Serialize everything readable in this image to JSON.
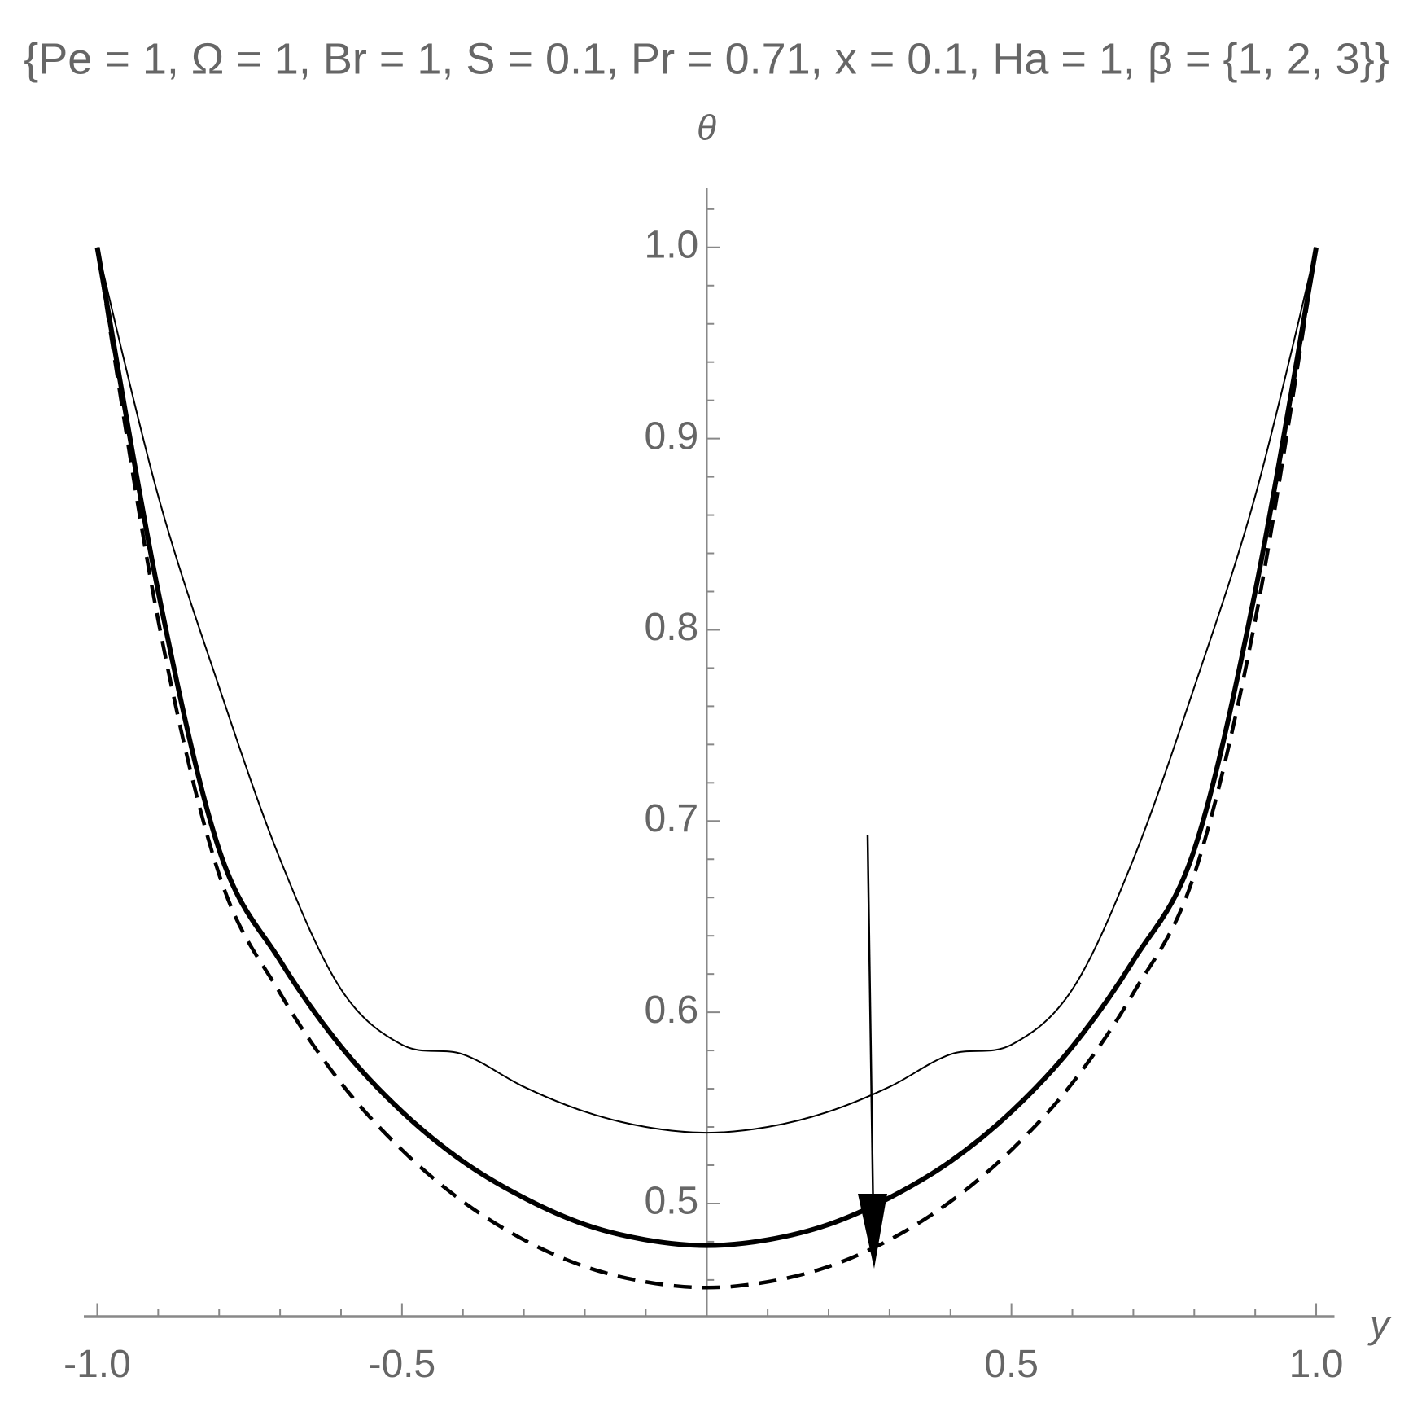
{
  "chart_data": {
    "type": "line",
    "title": "{Pe = 1, Ω = 1, Br = 1, S = 0.1, Pr = 0.71, x = 0.1, Ha = 1, β = {1, 2, 3}}",
    "x_label": "y",
    "y_label": "θ",
    "x": [
      -1,
      -0.9,
      -0.8,
      -0.7,
      -0.6,
      -0.5,
      -0.4,
      -0.3,
      -0.2,
      -0.1,
      0,
      0.1,
      0.2,
      0.3,
      0.4,
      0.5,
      0.6,
      0.7,
      0.8,
      0.9,
      1
    ],
    "series": [
      {
        "color": "#000000",
        "line_style": "thin",
        "values": [
          1.0,
          0.87,
          0.77,
          0.68,
          0.612,
          0.583,
          0.578,
          0.561,
          0.548,
          0.54,
          0.537,
          0.54,
          0.548,
          0.561,
          0.578,
          0.583,
          0.612,
          0.68,
          0.77,
          0.87,
          1.0
        ]
      },
      {
        "color": "#000000",
        "line_style": "thick",
        "values": [
          1.0,
          0.82,
          0.685,
          0.627,
          0.582,
          0.548,
          0.522,
          0.503,
          0.489,
          0.481,
          0.478,
          0.481,
          0.489,
          0.503,
          0.522,
          0.548,
          0.582,
          0.627,
          0.685,
          0.82,
          1.0
        ]
      },
      {
        "color": "#000000",
        "line_style": "dashed",
        "values": [
          1.0,
          0.805,
          0.672,
          0.61,
          0.563,
          0.528,
          0.501,
          0.481,
          0.467,
          0.459,
          0.456,
          0.459,
          0.467,
          0.481,
          0.501,
          0.528,
          0.563,
          0.61,
          0.672,
          0.805,
          1.0
        ]
      }
    ],
    "xlim": [
      -1.022,
      1.03
    ],
    "ylim": [
      0.441,
      1.031
    ],
    "xticks": [
      {
        "value": -1,
        "label": "-1.0"
      },
      -0.5,
      0.5,
      {
        "value": 1,
        "label": "1.0"
      }
    ],
    "xminorticks": [
      -0.9,
      -0.8,
      -0.7,
      -0.6,
      -0.4,
      -0.3,
      -0.2,
      -0.1,
      0.1,
      0.2,
      0.3,
      0.4,
      0.6,
      0.7,
      0.8,
      0.9
    ],
    "yticks": [
      0.5,
      0.6,
      0.7,
      0.8,
      0.9,
      {
        "value": 1,
        "label": "1.0"
      }
    ],
    "yminorticks": [
      0.46,
      0.48,
      0.52,
      0.54,
      0.56,
      0.58,
      0.62,
      0.64,
      0.66,
      0.68,
      0.72,
      0.74,
      0.76,
      0.78,
      0.82,
      0.84,
      0.86,
      0.88,
      0.92,
      0.94,
      0.96,
      0.98,
      1.02
    ],
    "grid": false
  }
}
